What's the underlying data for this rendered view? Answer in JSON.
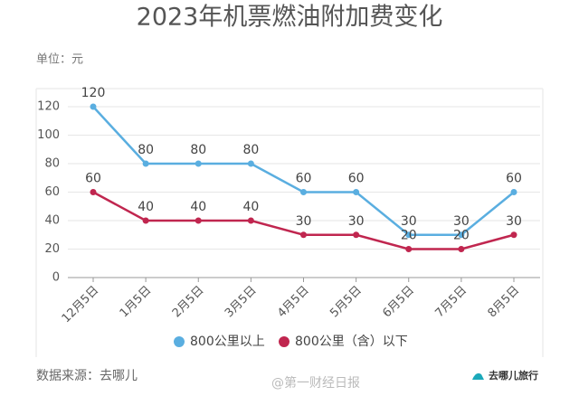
{
  "chart_data": {
    "type": "line",
    "title": "2023年机票燃油附加费变化",
    "unit": "单位：元",
    "categories": [
      "12月5日",
      "1月5日",
      "2月5日",
      "3月5日",
      "4月5日",
      "5月5日",
      "6月5日",
      "7月5日",
      "8月5日"
    ],
    "series": [
      {
        "name": "800公里以上",
        "color": "#5aaee0",
        "values": [
          120,
          80,
          80,
          80,
          60,
          60,
          30,
          30,
          60
        ]
      },
      {
        "name": "800公里（含）以下",
        "color": "#c0264f",
        "values": [
          60,
          40,
          40,
          40,
          30,
          30,
          20,
          20,
          30
        ]
      }
    ],
    "ylim": [
      0,
      120
    ],
    "yticks": [
      0,
      20,
      40,
      60,
      80,
      100,
      120
    ],
    "grid": true,
    "source": "数据来源：去哪儿",
    "watermark": "@第一财经日报",
    "logo": "去哪儿旅行"
  }
}
